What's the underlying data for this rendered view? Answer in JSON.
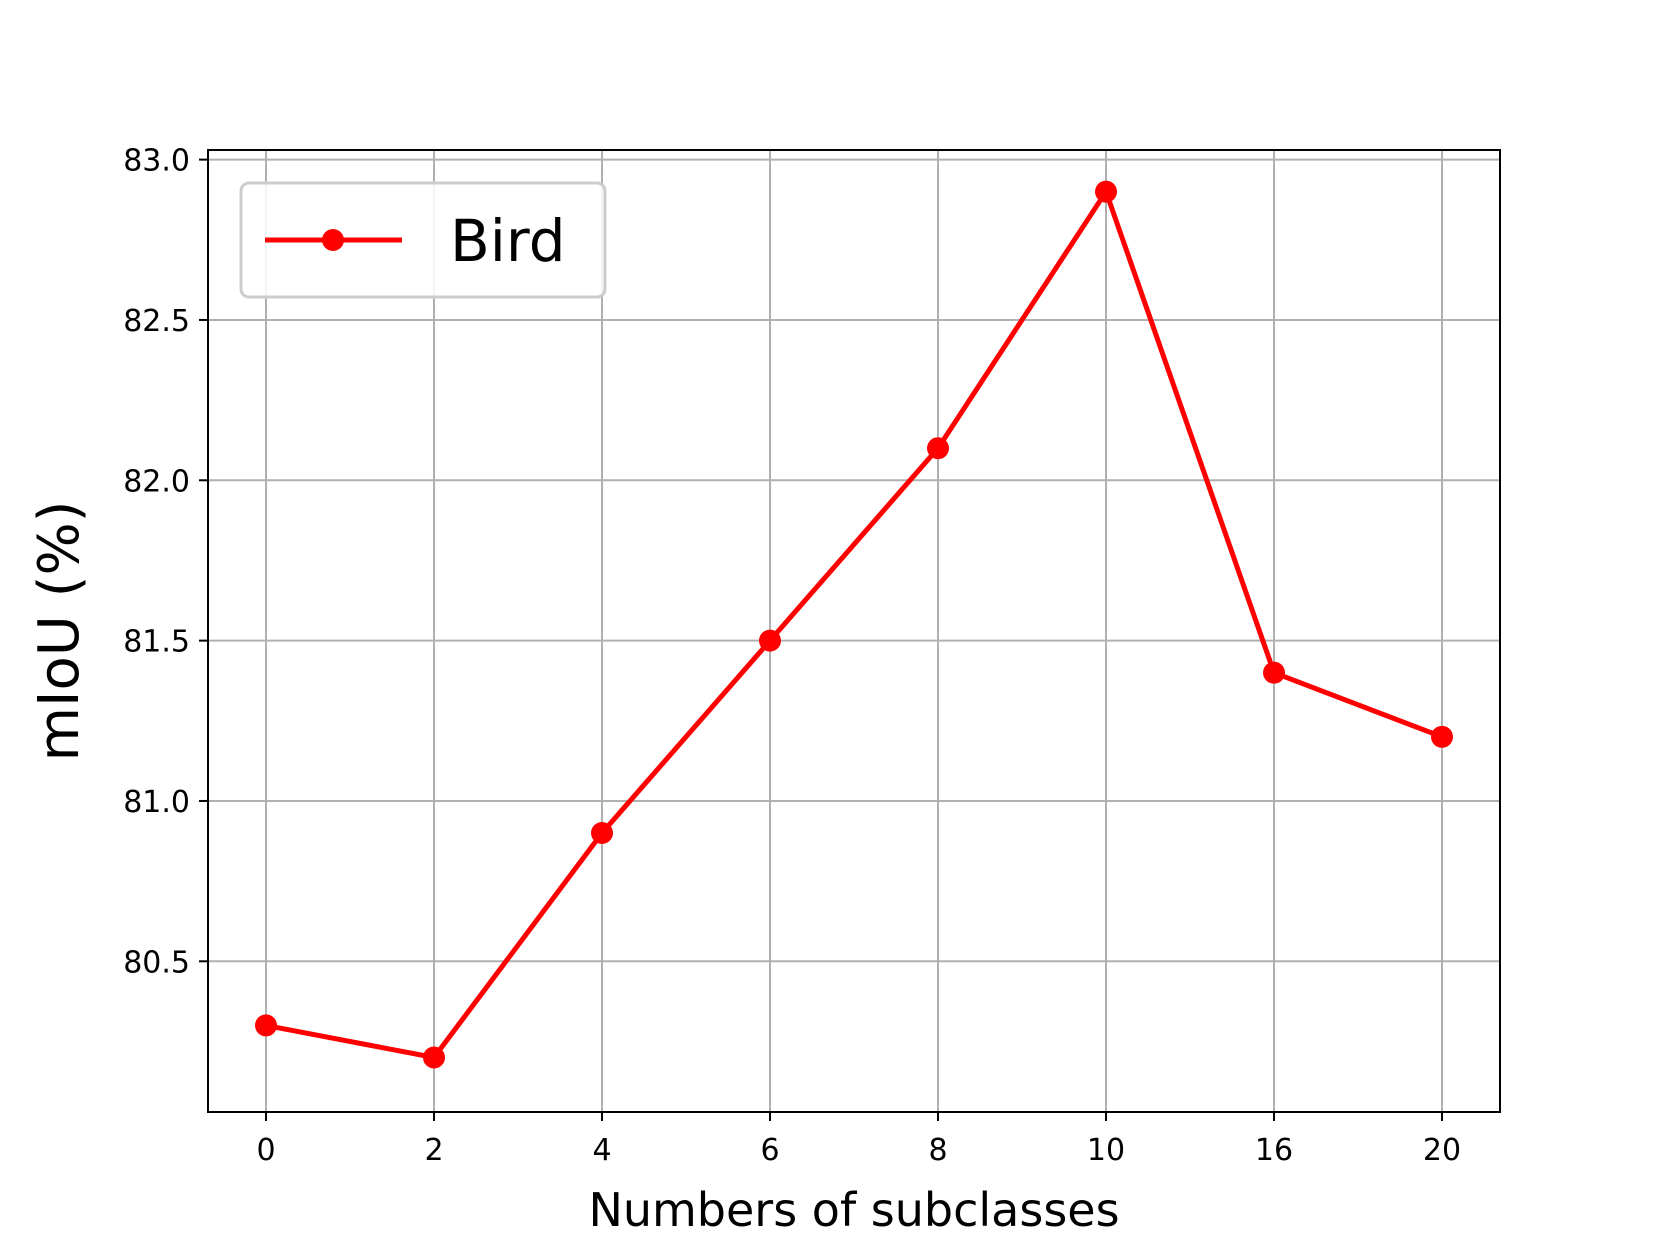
{
  "chart_data": {
    "type": "line",
    "title": "",
    "xlabel": "Numbers of subclasses",
    "ylabel": "mIoU (%)",
    "categories": [
      "0",
      "2",
      "4",
      "6",
      "8",
      "10",
      "16",
      "20"
    ],
    "series": [
      {
        "name": "Bird",
        "color": "#ff0000",
        "marker": "circle",
        "values": [
          80.3,
          80.2,
          80.9,
          81.5,
          82.1,
          82.9,
          81.4,
          81.2
        ]
      }
    ],
    "ylim": [
      80.03,
      83.03
    ],
    "yticks": [
      80.5,
      81.0,
      81.5,
      82.0,
      82.5,
      83.0
    ],
    "ytick_labels": [
      "80.5",
      "81.0",
      "81.5",
      "82.0",
      "82.5",
      "83.0"
    ],
    "grid": true,
    "legend_position": "top-left"
  }
}
